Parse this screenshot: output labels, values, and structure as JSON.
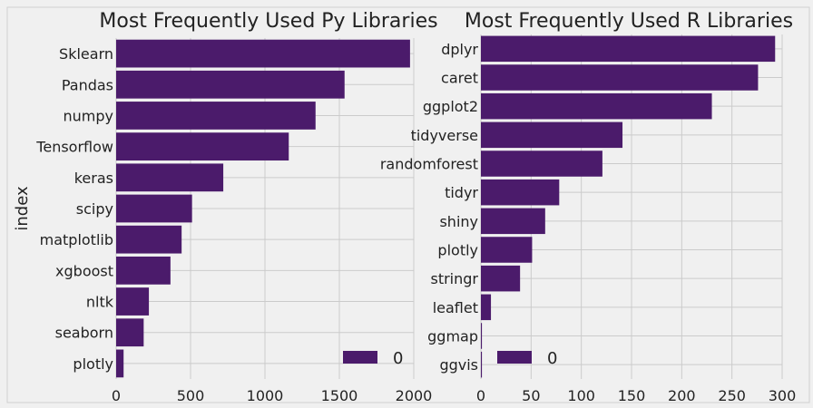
{
  "colors": {
    "figure_bg": "#f0f0f0",
    "axes_bg": "#f0f0f0",
    "bar": "#4b1b6b",
    "grid": "#cbcbcb",
    "text": "#222222"
  },
  "chart_data": [
    {
      "type": "bar",
      "orientation": "horizontal",
      "title": "Most Frequently Used Py Libraries",
      "ylabel": "index",
      "xlabel": "",
      "categories": [
        "Sklearn",
        "Pandas",
        "numpy",
        "Tensorflow",
        "keras",
        "scipy",
        "matplotlib",
        "xgboost",
        "nltk",
        "seaborn",
        "plotly"
      ],
      "series": [
        {
          "name": "0",
          "values": [
            1975,
            1535,
            1340,
            1160,
            720,
            510,
            440,
            365,
            220,
            185,
            50
          ]
        }
      ],
      "xlim": [
        0,
        2000
      ],
      "xticks": [
        "0",
        "500",
        "1000",
        "1500",
        "2000"
      ],
      "grid": true,
      "legend_position": "lower right"
    },
    {
      "type": "bar",
      "orientation": "horizontal",
      "title": "Most Frequently Used R Libraries",
      "ylabel": "",
      "xlabel": "",
      "categories": [
        "dplyr",
        "caret",
        "ggplot2",
        "tidyverse",
        "randomforest",
        "tidyr",
        "shiny",
        "plotly",
        "stringr",
        "leaflet",
        "ggmap",
        "ggvis"
      ],
      "series": [
        {
          "name": "0",
          "values": [
            293,
            276,
            230,
            141,
            121,
            78,
            64,
            51,
            39,
            10,
            1,
            1
          ]
        }
      ],
      "xlim": [
        0,
        300
      ],
      "xticks": [
        "0",
        "50",
        "100",
        "150",
        "200",
        "250",
        "300"
      ],
      "grid": true,
      "legend_position": "lower center"
    }
  ]
}
